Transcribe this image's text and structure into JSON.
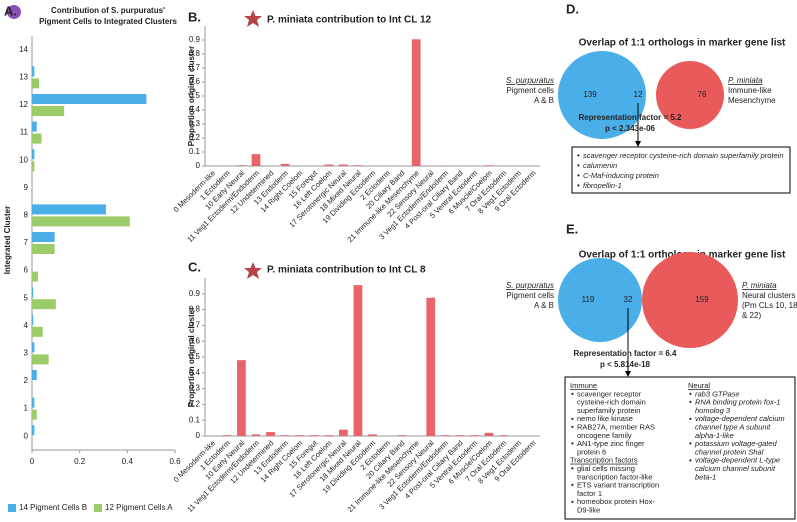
{
  "panel_labels": [
    "A.",
    "B.",
    "C.",
    "D.",
    "E."
  ],
  "chart_data": [
    {
      "type": "hbar",
      "title": [
        "Contribution of S. purpuratus'",
        "Pigment Cells to Integrated Clusters"
      ],
      "ylabel": "Integrated Cluster",
      "categories": [
        "0",
        "1",
        "2",
        "3",
        "4",
        "5",
        "6",
        "7",
        "8",
        "9",
        "10",
        "11",
        "12",
        "13",
        "14"
      ],
      "series": [
        {
          "name": "14 Pigment Cells B",
          "color": "#4aaee8",
          "values": [
            0.01,
            0.01,
            0.02,
            0.01,
            0.005,
            0.005,
            0,
            0.095,
            0.31,
            0,
            0.01,
            0.02,
            0.48,
            0.01,
            0
          ]
        },
        {
          "name": "12 Pigment Cells A",
          "color": "#9ccc6a",
          "values": [
            0,
            0.02,
            0,
            0.07,
            0.045,
            0.1,
            0.025,
            0.095,
            0.41,
            0,
            0.01,
            0.04,
            0.135,
            0.03,
            0
          ]
        }
      ],
      "xlim": [
        0,
        0.6
      ],
      "xticks": [
        0,
        0.2,
        0.4,
        0.6
      ],
      "legend": "bottom"
    },
    {
      "type": "bar",
      "title": "P. miniata contribution to Int CL 12",
      "ylabel": "Proportion original cluster",
      "categories": [
        "0 Mesoderm-like",
        "1 Ectoderm",
        "10 Early Neural",
        "11 Veg1 Ectoderm/Endoderm",
        "12 Undetermined",
        "13 Endoderm",
        "14 Right Coelom",
        "15 Foregut",
        "16 Left Coelom",
        "17 Serotonergic Neural",
        "18 Mixed Neural",
        "19 Dividing Ectoderm",
        "2 Ectoderm",
        "20 Ciliary Band",
        "21 Immune-like Mesenchyme",
        "22 Sensory Neural",
        "3 Veg1 Ectoderm/Endoderm",
        "4 Post-oral Ciliary Band",
        "5 Ventral Ectoderm",
        "6 Muscle/Coelom",
        "7 Oral Ectoderm",
        "8 Veg1 Ectoderm",
        "9 Oral Ectoderm"
      ],
      "values": [
        0,
        0,
        0.005,
        0.085,
        0,
        0.015,
        0,
        0,
        0.01,
        0.01,
        0.005,
        0,
        0,
        0,
        0.905,
        0.002,
        0.002,
        0,
        0,
        0.005,
        0,
        0,
        0
      ],
      "color": "#e8636a",
      "ylim": [
        0,
        1
      ],
      "yticks": [
        0,
        0.1,
        0.2,
        0.3,
        0.4,
        0.5,
        0.6,
        0.7,
        0.8,
        0.9
      ]
    },
    {
      "type": "bar",
      "title": "P. miniata contribution to Int CL 8",
      "ylabel": "Proportion original cluster",
      "categories": [
        "0 Mesoderm-like",
        "1 Ectoderm",
        "10 Early Neural",
        "11 Veg1 Ectoderm/Endoderm",
        "12 Undetermined",
        "13 Endoderm",
        "14 Right Coelom",
        "15 Foregut",
        "16 Left Coelom",
        "17 Serotonergic Neural",
        "18 Mixed Neural",
        "19 Dividing Ectoderm",
        "2 Ectoderm",
        "20 Ciliary Band",
        "21 Immune-like Mesenchyme",
        "22 Sensory Neural",
        "3 Veg1 Ectoderm/Endoderm",
        "4 Post-oral Ciliary Band",
        "5 Ventral Ectoderm",
        "6 Muscle/Coelom",
        "7 Oral Ectoderm",
        "8 Veg1 Ectoderm",
        "9 Oral Ectoderm"
      ],
      "values": [
        0,
        0.005,
        0.48,
        0.01,
        0.025,
        0.005,
        0.005,
        0.005,
        0.005,
        0.04,
        0.955,
        0.01,
        0,
        0.005,
        0,
        0.875,
        0.005,
        0.005,
        0.005,
        0.02,
        0.005,
        0,
        0
      ],
      "color": "#e8636a",
      "ylim": [
        0,
        1
      ],
      "yticks": [
        0,
        0.1,
        0.2,
        0.3,
        0.4,
        0.5,
        0.6,
        0.7,
        0.8,
        0.9
      ]
    }
  ],
  "venn": [
    {
      "title": "Overlap of 1:1 orthologs in marker gene list",
      "left_label": [
        "S. purpuratus",
        "Pigment cells",
        "A & B"
      ],
      "left_count": "139",
      "overlap": "12",
      "right_label": [
        "P. miniata",
        "Immune-like",
        "Mesenchyme"
      ],
      "right_count": "76",
      "stats": [
        "Representation factor = 5.2",
        "p < 2.343e-06"
      ],
      "genes": [
        "scavenger receptor cysteine-rich domain superfamily protein",
        "calumenin",
        "C-Maf-inducing protein",
        "fibropellin-1"
      ]
    },
    {
      "title": "Overlap of 1:1 orthologs in marker gene list",
      "left_label": [
        "S. purpuratus",
        "Pigment cells",
        "A & B"
      ],
      "left_count": "119",
      "overlap": "32",
      "right_label": [
        "P. miniata",
        "Neural clusters",
        "(Pm CLs 10, 18",
        "& 22)"
      ],
      "right_count": "159",
      "stats": [
        "Representation factor = 6.4",
        "p < 5.814e-18"
      ],
      "columns": [
        [
          {
            "heading": "Immune",
            "italic": false,
            "items": [
              [
                "scavenger receptor",
                "cysteine-rich domain",
                "superfamily protein"
              ],
              [
                "nemo like kinase"
              ],
              [
                "RAB27A, member RAS",
                "oncogene family"
              ],
              [
                "AN1-type zinc finger",
                "protein 6"
              ]
            ]
          },
          {
            "heading": "Transcription factors",
            "italic": false,
            "items": [
              [
                "glial cells missing",
                "transcription factor-like"
              ],
              [
                "ETS variant transcription",
                "factor 1"
              ],
              [
                "homeobox protein Hox-",
                "D9-like"
              ]
            ]
          }
        ],
        [
          {
            "heading": "Neural",
            "italic": true,
            "items": [
              [
                "rab3 GTPase"
              ],
              [
                "RNA binding protein fox-1",
                "homolog 3"
              ],
              [
                "voltage-dependent calcium",
                "channel type A subunit",
                "alpha-1-like"
              ],
              [
                "potassium voltage-gated",
                "channel protein Shal"
              ],
              [
                "voltage-dependent L-type",
                "calcium channel subunit",
                "beta-1"
              ]
            ]
          }
        ]
      ]
    }
  ]
}
